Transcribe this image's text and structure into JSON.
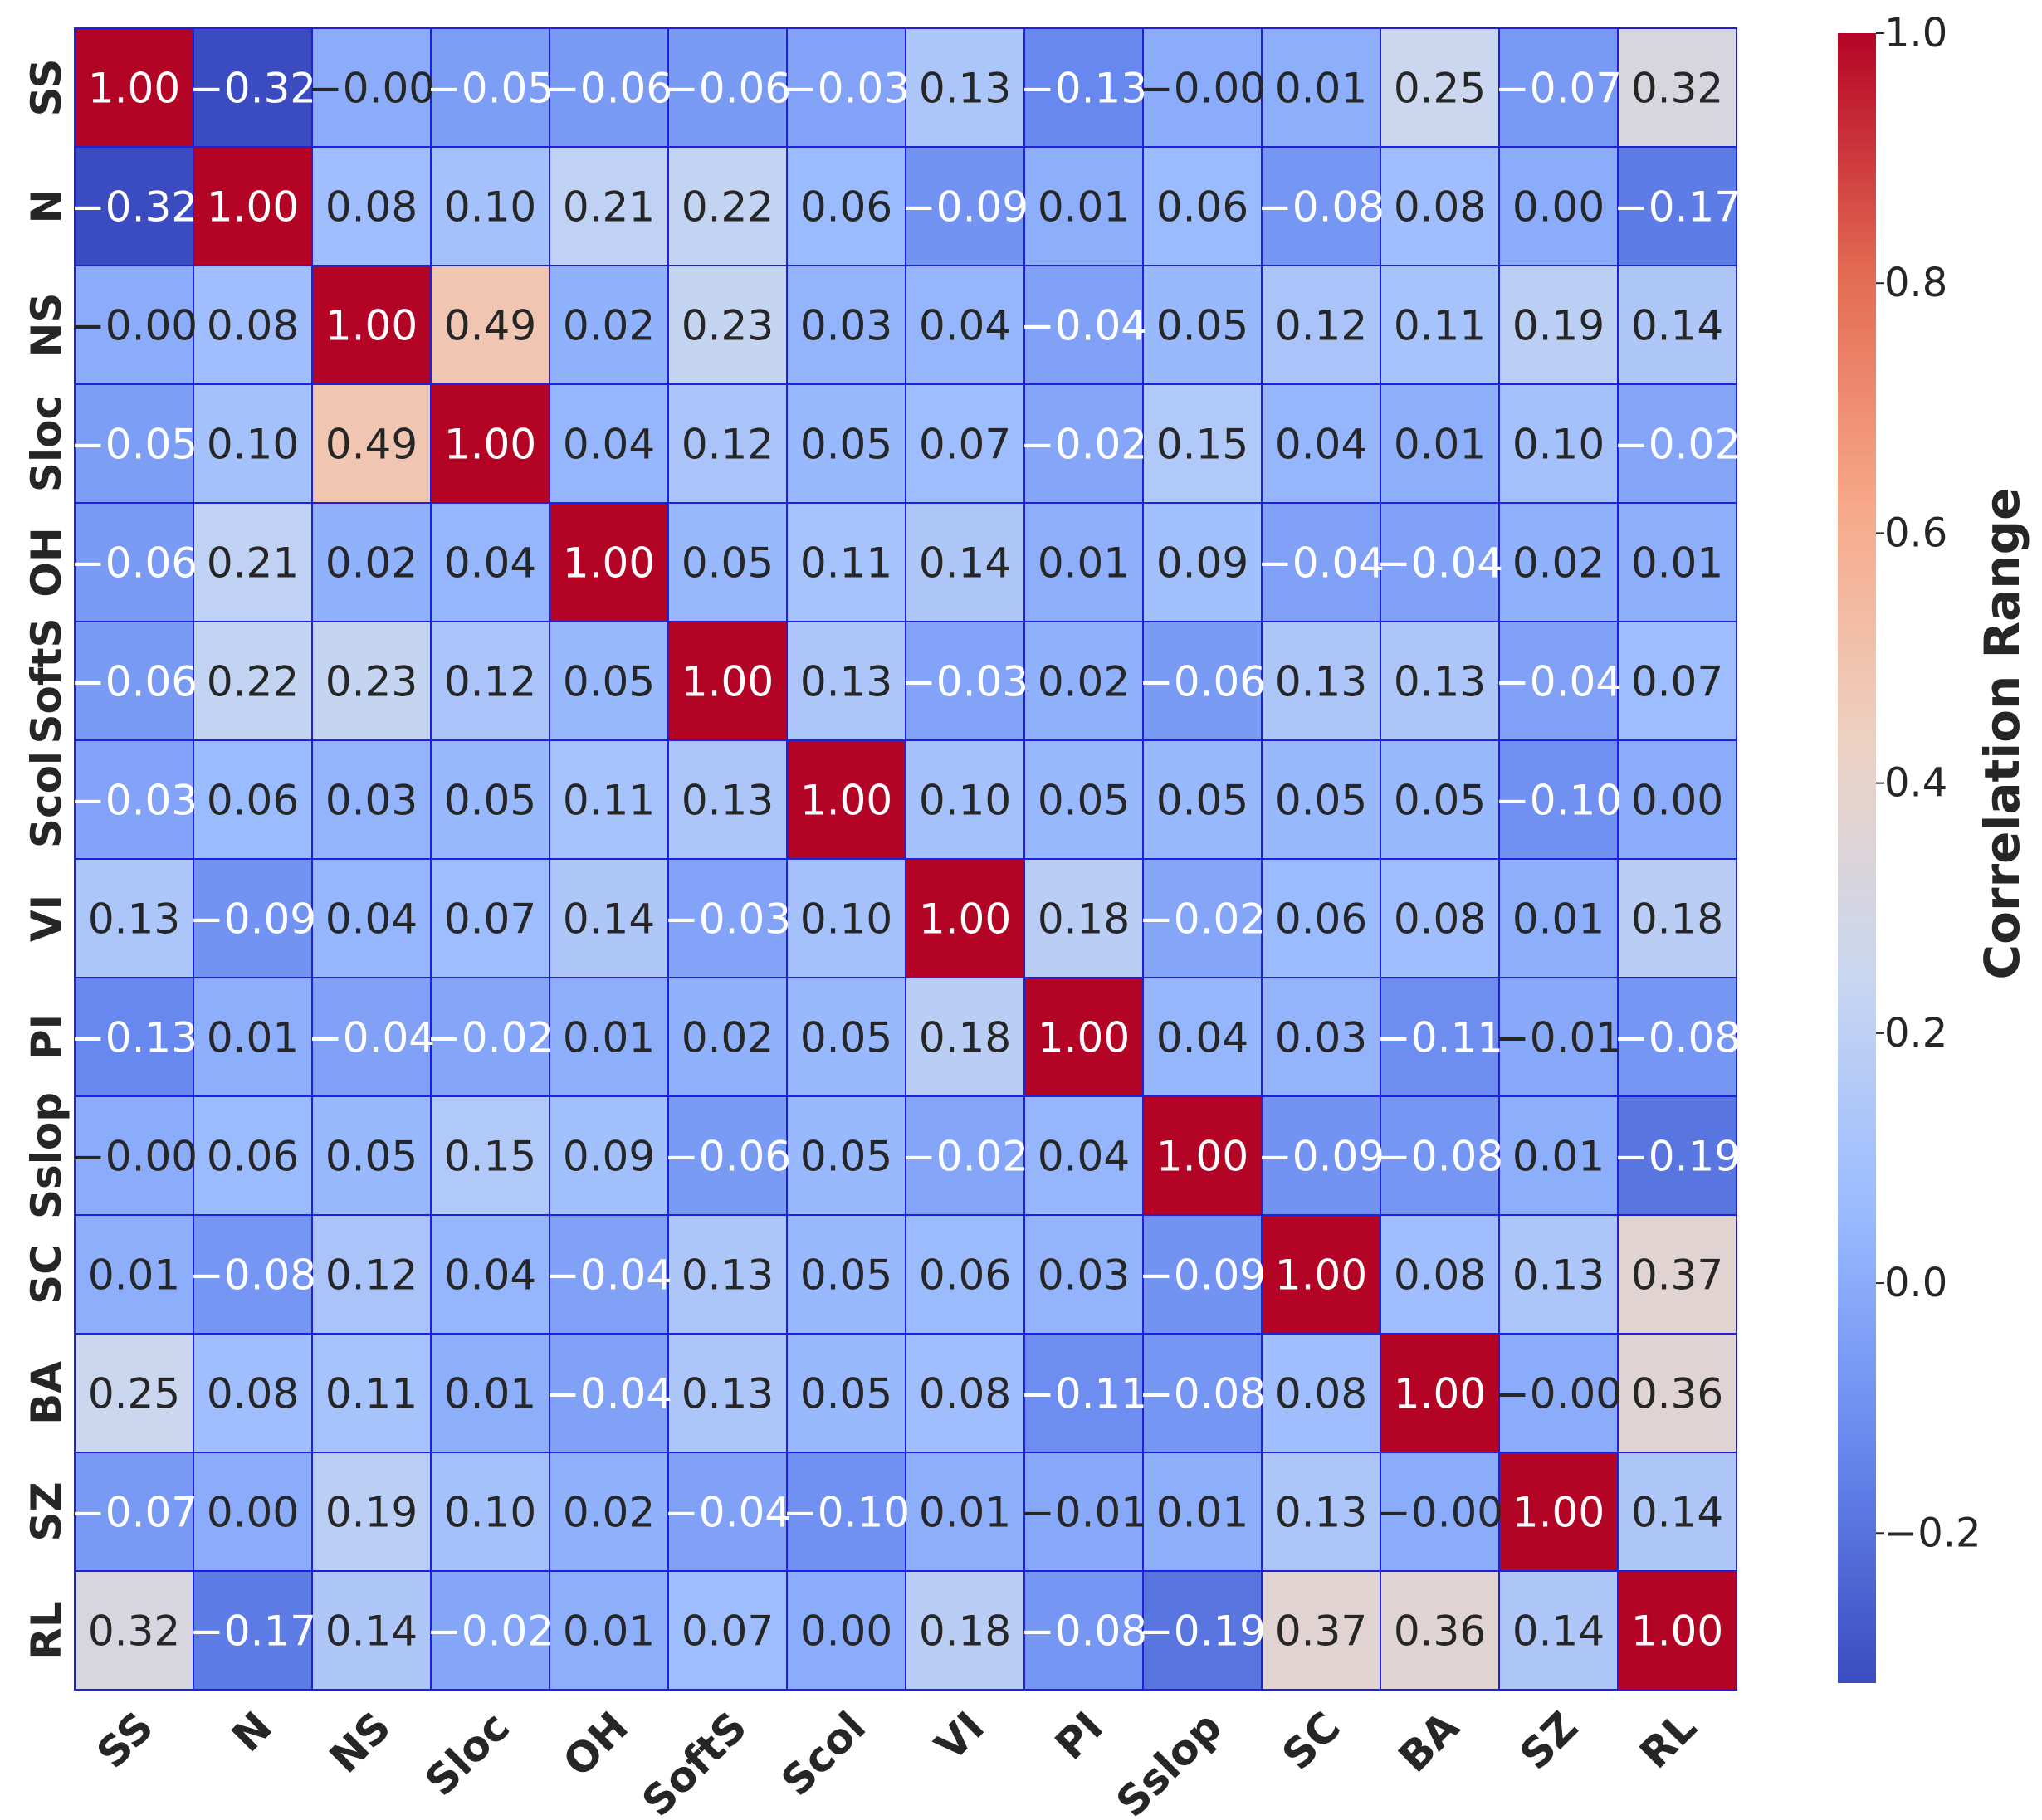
{
  "chart_data": {
    "type": "heatmap",
    "title": "",
    "xlabel": "",
    "ylabel": "",
    "row_labels": [
      "SS",
      "N",
      "NS",
      "Sloc",
      "OH",
      "SoftS",
      "Scol",
      "VI",
      "PI",
      "Sslop",
      "SC",
      "BA",
      "SZ",
      "RL"
    ],
    "col_labels": [
      "SS",
      "N",
      "NS",
      "Sloc",
      "OH",
      "SoftS",
      "Scol",
      "VI",
      "PI",
      "Sslop",
      "SC",
      "BA",
      "SZ",
      "RL"
    ],
    "value_labels": [
      [
        "1.00",
        "−0.32",
        "−0.00",
        "−0.05",
        "−0.06",
        "−0.06",
        "−0.03",
        "0.13",
        "−0.13",
        "−0.00",
        "0.01",
        "0.25",
        "−0.07",
        "0.32"
      ],
      [
        "−0.32",
        "1.00",
        "0.08",
        "0.10",
        "0.21",
        "0.22",
        "0.06",
        "−0.09",
        "0.01",
        "0.06",
        "−0.08",
        "0.08",
        "0.00",
        "−0.17"
      ],
      [
        "−0.00",
        "0.08",
        "1.00",
        "0.49",
        "0.02",
        "0.23",
        "0.03",
        "0.04",
        "−0.04",
        "0.05",
        "0.12",
        "0.11",
        "0.19",
        "0.14"
      ],
      [
        "−0.05",
        "0.10",
        "0.49",
        "1.00",
        "0.04",
        "0.12",
        "0.05",
        "0.07",
        "−0.02",
        "0.15",
        "0.04",
        "0.01",
        "0.10",
        "−0.02"
      ],
      [
        "−0.06",
        "0.21",
        "0.02",
        "0.04",
        "1.00",
        "0.05",
        "0.11",
        "0.14",
        "0.01",
        "0.09",
        "−0.04",
        "−0.04",
        "0.02",
        "0.01"
      ],
      [
        "−0.06",
        "0.22",
        "0.23",
        "0.12",
        "0.05",
        "1.00",
        "0.13",
        "−0.03",
        "0.02",
        "−0.06",
        "0.13",
        "0.13",
        "−0.04",
        "0.07"
      ],
      [
        "−0.03",
        "0.06",
        "0.03",
        "0.05",
        "0.11",
        "0.13",
        "1.00",
        "0.10",
        "0.05",
        "0.05",
        "0.05",
        "0.05",
        "−0.10",
        "0.00"
      ],
      [
        "0.13",
        "−0.09",
        "0.04",
        "0.07",
        "0.14",
        "−0.03",
        "0.10",
        "1.00",
        "0.18",
        "−0.02",
        "0.06",
        "0.08",
        "0.01",
        "0.18"
      ],
      [
        "−0.13",
        "0.01",
        "−0.04",
        "−0.02",
        "0.01",
        "0.02",
        "0.05",
        "0.18",
        "1.00",
        "0.04",
        "0.03",
        "−0.11",
        "−0.01",
        "−0.08"
      ],
      [
        "−0.00",
        "0.06",
        "0.05",
        "0.15",
        "0.09",
        "−0.06",
        "0.05",
        "−0.02",
        "0.04",
        "1.00",
        "−0.09",
        "−0.08",
        "0.01",
        "−0.19"
      ],
      [
        "0.01",
        "−0.08",
        "0.12",
        "0.04",
        "−0.04",
        "0.13",
        "0.05",
        "0.06",
        "0.03",
        "−0.09",
        "1.00",
        "0.08",
        "0.13",
        "0.37"
      ],
      [
        "0.25",
        "0.08",
        "0.11",
        "0.01",
        "−0.04",
        "0.13",
        "0.05",
        "0.08",
        "−0.11",
        "−0.08",
        "0.08",
        "1.00",
        "−0.00",
        "0.36"
      ],
      [
        "−0.07",
        "0.00",
        "0.19",
        "0.10",
        "0.02",
        "−0.04",
        "−0.10",
        "0.01",
        "−0.01",
        "0.01",
        "0.13",
        "−0.00",
        "1.00",
        "0.14"
      ],
      [
        "0.32",
        "−0.17",
        "0.14",
        "−0.02",
        "0.01",
        "0.07",
        "0.00",
        "0.18",
        "−0.08",
        "−0.19",
        "0.37",
        "0.36",
        "0.14",
        "1.00"
      ]
    ],
    "colorbar": {
      "label": "Correlation Range",
      "range": [
        -0.32,
        1.0
      ],
      "ticks": [
        1.0,
        0.8,
        0.6,
        0.4,
        0.2,
        0.0,
        -0.2
      ],
      "tick_labels": [
        "1.0",
        "0.8",
        "0.6",
        "0.4",
        "0.2",
        "0.0",
        "−0.2"
      ],
      "colormap": "coolwarm",
      "stops": [
        "#3b4cc0",
        "#6788ee",
        "#9abbff",
        "#c9d7f0",
        "#edd1c2",
        "#f7a889",
        "#e26952",
        "#b40426"
      ]
    },
    "grid": true,
    "grid_color": "#1f1fe0"
  }
}
